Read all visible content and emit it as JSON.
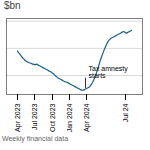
{
  "chart_data": {
    "type": "line",
    "title": "$bn",
    "caption": "Weekly financial data",
    "categories": [
      "Apr 2023",
      null,
      null,
      null,
      null,
      null,
      null,
      null,
      null,
      null,
      null,
      null,
      null,
      null,
      null,
      null,
      null,
      "Jul 2023",
      null,
      null,
      null,
      null,
      null,
      null,
      null,
      null,
      null,
      null,
      null,
      null,
      null,
      null,
      null,
      null,
      null,
      "Oct 2023",
      null,
      null,
      null,
      null,
      null,
      null,
      null,
      null,
      null,
      null,
      null,
      null,
      null,
      null,
      null,
      null,
      "Jan 2024",
      null,
      null,
      null,
      null,
      null,
      null,
      null,
      null,
      null,
      null,
      null,
      null,
      null,
      null,
      null,
      null,
      "Apr 2024",
      null,
      null,
      null,
      null,
      null,
      null,
      null,
      null,
      null,
      null,
      null,
      null,
      null,
      null,
      null,
      null,
      null,
      null,
      null,
      null,
      null,
      null,
      null,
      null,
      null,
      null,
      null,
      null,
      null,
      null,
      null,
      null,
      null,
      null,
      null,
      null,
      null,
      null,
      "Jul 24",
      null,
      null,
      null,
      null,
      null,
      null
    ],
    "values": [
      19.5,
      19.2,
      19.0,
      18.8,
      18.5,
      18.3,
      18.1,
      17.9,
      17.7,
      17.6,
      17.5,
      17.4,
      17.3,
      17.3,
      17.2,
      17.1,
      17.1,
      17.0,
      17.0,
      17.1,
      17.0,
      16.9,
      16.8,
      16.7,
      16.6,
      16.5,
      16.4,
      16.3,
      16.2,
      16.1,
      16.0,
      15.9,
      15.8,
      15.7,
      15.6,
      15.4,
      15.3,
      15.1,
      14.9,
      14.8,
      14.6,
      14.5,
      14.4,
      14.3,
      14.2,
      14.1,
      14.0,
      13.9,
      13.8,
      13.8,
      13.7,
      13.6,
      13.5,
      13.4,
      13.3,
      13.2,
      13.1,
      13.0,
      12.9,
      12.8,
      12.7,
      12.6,
      12.5,
      12.4,
      12.3,
      12.3,
      12.3,
      12.4,
      12.5,
      12.6,
      12.7,
      12.8,
      12.9,
      13.1,
      13.4,
      13.7,
      14.1,
      14.5,
      15.0,
      15.5,
      16.1,
      16.7,
      17.3,
      17.9,
      18.4,
      18.9,
      19.4,
      19.9,
      20.3,
      20.7,
      21.1,
      21.4,
      21.6,
      21.8,
      21.9,
      22.0,
      22.1,
      22.2,
      22.3,
      22.4,
      22.5,
      22.6,
      22.7,
      22.8,
      22.9,
      23.0,
      23.1,
      23.0,
      22.9,
      22.8,
      22.9,
      23.0,
      23.1,
      23.2,
      23.3
    ],
    "color": "#1d5f8a",
    "ylim": [
      11.5,
      25.5
    ],
    "yticks": [
      15,
      20,
      25
    ],
    "grid": true,
    "tick_labels": "x",
    "annotations": [
      {
        "text": "Tax amnesty\nstarts",
        "x": 68
      }
    ]
  }
}
